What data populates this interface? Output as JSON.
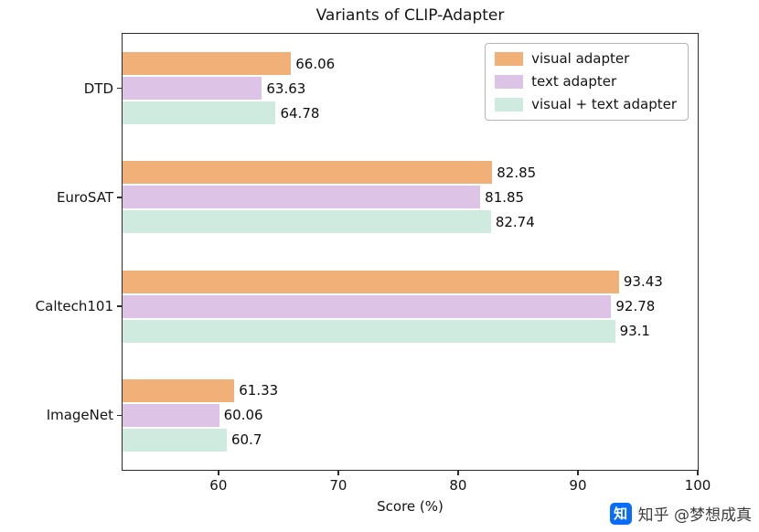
{
  "title": "Variants of CLIP-Adapter",
  "chart_data": {
    "type": "bar",
    "orientation": "horizontal",
    "title": "Variants of CLIP-Adapter",
    "categories": [
      "DTD",
      "EuroSAT",
      "Caltech101",
      "ImageNet"
    ],
    "series": [
      {
        "name": "visual adapter",
        "color": "#f1b077",
        "values": [
          66.06,
          82.85,
          93.43,
          61.33
        ]
      },
      {
        "name": "text adapter",
        "color": "#ddc4e7",
        "values": [
          63.63,
          81.85,
          92.78,
          60.06
        ]
      },
      {
        "name": "visual + text adapter",
        "color": "#cfeadf",
        "values": [
          64.78,
          82.74,
          93.1,
          60.7
        ]
      }
    ],
    "xlabel": "Score (%)",
    "xlim": [
      52,
      100
    ],
    "xticks": [
      60,
      70,
      80,
      90,
      100
    ],
    "legend_position": "upper right",
    "grid": false
  },
  "watermark": {
    "logo_text": "知",
    "logo_color": "#0b6cfa",
    "text": "知乎 @梦想成真"
  }
}
